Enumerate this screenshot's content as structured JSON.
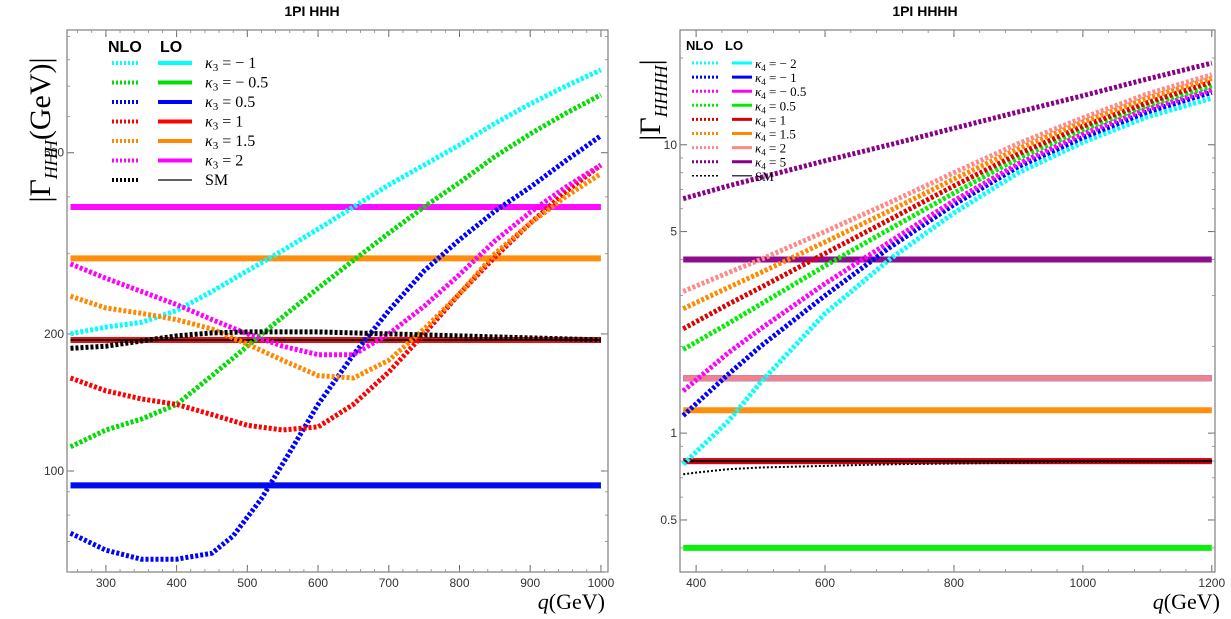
{
  "chart_data": [
    {
      "type": "line",
      "title": "1PI HHH",
      "ylabel": "|Γ_HHH(GeV)|",
      "ylabel_main": "|Γ",
      "ylabel_sub": "HHH",
      "ylabel_tail": "(GeV)|",
      "xlabel_var": "q",
      "xlabel_unit": "(GeV)",
      "xscale": "linear",
      "yscale": "log",
      "xlim": [
        245,
        1010
      ],
      "ylim": [
        60,
        930
      ],
      "xticks": [
        300,
        400,
        500,
        600,
        700,
        800,
        900,
        1000
      ],
      "yticks": [
        100,
        200,
        500
      ],
      "legend_headers": [
        "NLO",
        "LO"
      ],
      "legend_position": "top-left",
      "series": [
        {
          "name": "κ3 = − 1",
          "label_sym": "κ",
          "label_sub": "3",
          "label_val": " = − 1",
          "color": "#00ffff",
          "lo": 194,
          "nlo": {
            "x": [
              250,
              300,
              350,
              400,
              450,
              500,
              550,
              600,
              650,
              700,
              750,
              800,
              850,
              900,
              950,
              1000
            ],
            "y": [
              200,
              207,
              212,
              225,
              248,
              275,
              305,
              340,
              380,
              425,
              470,
              520,
              580,
              640,
              700,
              760
            ]
          }
        },
        {
          "name": "κ3 = − 0.5",
          "label_sym": "κ",
          "label_sub": "3",
          "label_val": " = − 0.5",
          "color": "#00dd00",
          "lo": 93,
          "nlo": {
            "x": [
              250,
              300,
              350,
              400,
              450,
              500,
              550,
              600,
              650,
              700,
              750,
              800,
              850,
              900,
              950,
              1000
            ],
            "y": [
              113,
              123,
              130,
              140,
              162,
              188,
              218,
              252,
              290,
              333,
              380,
              430,
              490,
              550,
              610,
              670
            ]
          }
        },
        {
          "name": "κ3 = 0.5",
          "label_sym": "κ",
          "label_sub": "3",
          "label_val": " = 0.5",
          "color": "#0000ff",
          "lo": 93,
          "nlo": {
            "x": [
              250,
              300,
              350,
              400,
              450,
              480,
              520,
              560,
              600,
              650,
              700,
              750,
              800,
              850,
              900,
              950,
              1000
            ],
            "y": [
              73,
              67,
              64,
              64,
              66,
              72,
              87,
              110,
              140,
              180,
              225,
              275,
              322,
              372,
              420,
              480,
              545
            ]
          }
        },
        {
          "name": "κ3 = 1",
          "label_sym": "κ",
          "label_sub": "3",
          "label_val": " = 1",
          "color": "#ff0000",
          "lo": 194,
          "nlo": {
            "x": [
              250,
              300,
              350,
              400,
              450,
              500,
              550,
              600,
              650,
              700,
              750,
              800,
              850,
              900,
              950,
              1000
            ],
            "y": [
              160,
              150,
              144,
              140,
              133,
              126,
              123,
              125,
              140,
              165,
              200,
              245,
              295,
              350,
              410,
              470
            ]
          }
        },
        {
          "name": "κ3 = 1.5",
          "label_sym": "κ",
          "label_sub": "3",
          "label_val": " = 1.5",
          "color": "#ff8800",
          "lo": 293,
          "nlo": {
            "x": [
              250,
              300,
              350,
              400,
              450,
              500,
              550,
              600,
              650,
              700,
              750,
              800,
              850,
              900,
              950,
              1000
            ],
            "y": [
              242,
              228,
              222,
              215,
              205,
              190,
              175,
              162,
              160,
              175,
              205,
              245,
              300,
              350,
              400,
              450
            ]
          }
        },
        {
          "name": "κ3 = 2",
          "label_sym": "κ",
          "label_sub": "3",
          "label_val": " = 2",
          "color": "#ff00ff",
          "lo": 380,
          "nlo": {
            "x": [
              250,
              300,
              350,
              400,
              450,
              500,
              550,
              600,
              650,
              700,
              750,
              800,
              850,
              900,
              950,
              1000
            ],
            "y": [
              285,
              265,
              248,
              232,
              215,
              200,
              188,
              180,
              180,
              200,
              230,
              270,
              320,
              370,
              420,
              470
            ]
          }
        },
        {
          "name": "SM",
          "label_sym": "",
          "label_sub": "",
          "label_val": "SM",
          "color": "#000000",
          "lo": 194,
          "nlo": {
            "x": [
              250,
              300,
              350,
              400,
              450,
              500,
              550,
              600,
              650,
              700,
              750,
              800,
              850,
              900,
              950,
              1000
            ],
            "y": [
              186,
              188,
              193,
              198,
              201,
              202,
              202,
              202,
              201,
              200,
              199,
              198,
              197,
              196,
              195,
              194
            ]
          }
        }
      ]
    },
    {
      "type": "line",
      "title": "1PI HHHH",
      "ylabel": "|Γ_HHHH|",
      "ylabel_main": "|Γ",
      "ylabel_sub": "HHHH",
      "ylabel_tail": "|",
      "xlabel_var": "q",
      "xlabel_unit": "(GeV)",
      "xscale": "linear",
      "yscale": "log",
      "xlim": [
        375,
        1205
      ],
      "ylim": [
        0.33,
        25
      ],
      "xticks": [
        400,
        600,
        800,
        1000,
        1200
      ],
      "yticks": [
        0.5,
        1,
        5,
        10
      ],
      "legend_headers": [
        "NLO",
        "LO"
      ],
      "legend_position": "top-left",
      "series": [
        {
          "name": "κ4 = − 2",
          "label_sym": "κ",
          "label_sub": "4",
          "label_val": " = − 2",
          "color": "#00ffff",
          "lo": 1.55,
          "nlo": {
            "x": [
              380,
              450,
              500,
              600,
              700,
              800,
              900,
              1000,
              1100,
              1200
            ],
            "y": [
              0.78,
              1.1,
              1.5,
              2.6,
              4.0,
              5.8,
              8.0,
              10.2,
              12.5,
              14.5
            ]
          }
        },
        {
          "name": "κ4 = − 1",
          "label_sym": "κ",
          "label_sub": "4",
          "label_val": " = − 1",
          "color": "#0000ff",
          "lo": 1.55,
          "nlo": {
            "x": [
              380,
              450,
              500,
              600,
              700,
              800,
              900,
              1000,
              1100,
              1200
            ],
            "y": [
              1.15,
              1.6,
              2.0,
              3.0,
              4.4,
              6.2,
              8.4,
              10.6,
              13.0,
              15.2
            ]
          }
        },
        {
          "name": "κ4 = − 0.5",
          "label_sym": "κ",
          "label_sub": "4",
          "label_val": " = − 0.5",
          "color": "#ff00ff",
          "lo": 0.8,
          "nlo": {
            "x": [
              380,
              450,
              500,
              600,
              700,
              800,
              900,
              1000,
              1100,
              1200
            ],
            "y": [
              1.4,
              1.9,
              2.3,
              3.3,
              4.6,
              6.4,
              8.6,
              10.9,
              13.3,
              15.5
            ]
          }
        },
        {
          "name": "κ4 = 0.5",
          "label_sym": "κ",
          "label_sub": "4",
          "label_val": " = 0.5",
          "color": "#00ee00",
          "lo": 0.4,
          "nlo": {
            "x": [
              380,
              450,
              500,
              600,
              700,
              800,
              900,
              1000,
              1100,
              1200
            ],
            "y": [
              1.95,
              2.4,
              2.8,
              3.8,
              5.1,
              6.8,
              9.0,
              11.3,
              13.7,
              16.0
            ]
          }
        },
        {
          "name": "κ4 = 1",
          "label_sym": "κ",
          "label_sub": "4",
          "label_val": " = 1",
          "color": "#dd0000",
          "lo": 0.8,
          "nlo": {
            "x": [
              380,
              450,
              500,
              600,
              700,
              800,
              900,
              1000,
              1100,
              1200
            ],
            "y": [
              2.3,
              2.8,
              3.2,
              4.2,
              5.5,
              7.2,
              9.3,
              11.6,
              14.0,
              16.5
            ]
          }
        },
        {
          "name": "κ4 = 1.5",
          "label_sym": "κ",
          "label_sub": "4",
          "label_val": " = 1.5",
          "color": "#ff8800",
          "lo": 1.2,
          "nlo": {
            "x": [
              380,
              450,
              500,
              600,
              700,
              800,
              900,
              1000,
              1100,
              1200
            ],
            "y": [
              2.7,
              3.2,
              3.6,
              4.6,
              5.9,
              7.6,
              9.7,
              12.0,
              14.5,
              17.0
            ]
          }
        },
        {
          "name": "κ4 = 2",
          "label_sym": "κ",
          "label_sub": "4",
          "label_val": " = 2",
          "color": "#ff8888",
          "lo": 1.55,
          "nlo": {
            "x": [
              380,
              450,
              500,
              600,
              700,
              800,
              900,
              1000,
              1100,
              1200
            ],
            "y": [
              3.1,
              3.6,
              4.0,
              5.0,
              6.3,
              8.0,
              10.1,
              12.4,
              15.0,
              17.5
            ]
          }
        },
        {
          "name": "κ4 = 5",
          "label_sym": "κ",
          "label_sub": "4",
          "label_val": " = 5",
          "color": "#880088",
          "lo": 4.0,
          "nlo": {
            "x": [
              380,
              450,
              500,
              600,
              700,
              800,
              900,
              1000,
              1100,
              1200
            ],
            "y": [
              6.5,
              7.2,
              7.7,
              8.8,
              10.0,
              11.4,
              13.0,
              14.8,
              16.9,
              19.2
            ]
          }
        },
        {
          "name": "SM",
          "label_sym": "",
          "label_sub": "",
          "label_val": "SM",
          "color": "#000000",
          "lo": 0.8,
          "nlo": {
            "x": [
              380,
              400,
              450,
              500,
              600,
              700,
              800,
              900,
              1000,
              1100,
              1200
            ],
            "y": [
              0.72,
              0.73,
              0.75,
              0.76,
              0.77,
              0.78,
              0.785,
              0.79,
              0.795,
              0.797,
              0.8
            ]
          }
        }
      ]
    }
  ]
}
